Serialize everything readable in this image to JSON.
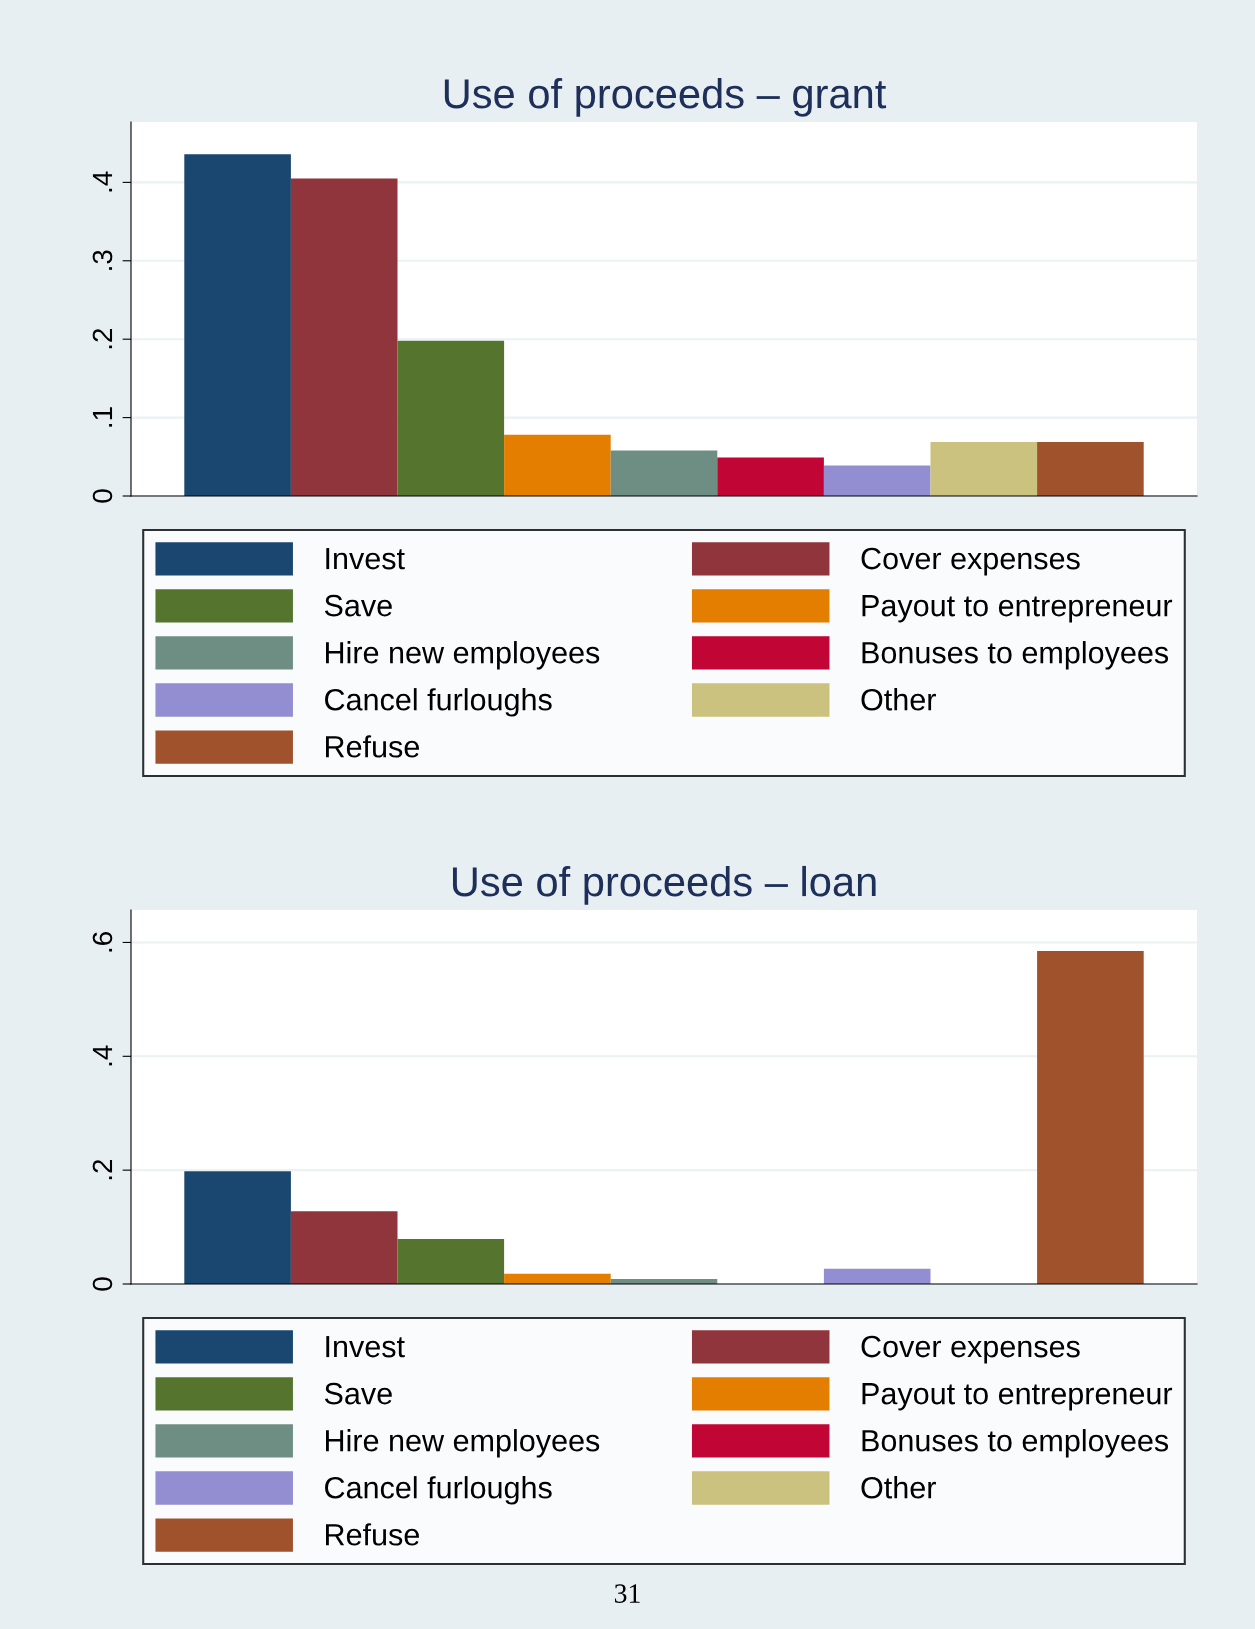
{
  "chart_data": [
    {
      "type": "bar",
      "title": "Use of proceeds – grant",
      "categories": [
        null
      ],
      "ylim": [
        0,
        0.477
      ],
      "yticks": [
        {
          "value": 0,
          "label": "0"
        },
        {
          "value": 0.1,
          "label": ".1"
        },
        {
          "value": 0.2,
          "label": ".2"
        },
        {
          "value": 0.3,
          "label": ".3"
        },
        {
          "value": 0.4,
          "label": ".4"
        }
      ],
      "grid": "y",
      "legend": "bottom",
      "series": [
        {
          "name": "Invest",
          "color": "#1a476f",
          "values": [
            0.436
          ]
        },
        {
          "name": "Cover expenses",
          "color": "#90353b",
          "values": [
            0.405
          ]
        },
        {
          "name": "Save",
          "color": "#55752f",
          "values": [
            0.198
          ]
        },
        {
          "name": "Payout to entrepreneur",
          "color": "#e37e00",
          "values": [
            0.078
          ]
        },
        {
          "name": "Hire new employees",
          "color": "#6e8e84",
          "values": [
            0.058
          ]
        },
        {
          "name": "Bonuses to employees",
          "color": "#c10534",
          "values": [
            0.049
          ]
        },
        {
          "name": "Cancel furloughs",
          "color": "#938dd2",
          "values": [
            0.039
          ]
        },
        {
          "name": "Other",
          "color": "#cac27e",
          "values": [
            0.069
          ]
        },
        {
          "name": "Refuse",
          "color": "#a0522d",
          "values": [
            0.069
          ]
        }
      ]
    },
    {
      "type": "bar",
      "title": "Use of proceeds – loan",
      "categories": [
        null
      ],
      "ylim": [
        0,
        0.657
      ],
      "yticks": [
        {
          "value": 0,
          "label": "0"
        },
        {
          "value": 0.2,
          "label": ".2"
        },
        {
          "value": 0.4,
          "label": ".4"
        },
        {
          "value": 0.6,
          "label": ".6"
        }
      ],
      "grid": "y",
      "legend": "bottom",
      "annotations": [
        "31"
      ],
      "series": [
        {
          "name": "Invest",
          "color": "#1a476f",
          "values": [
            0.198
          ]
        },
        {
          "name": "Cover expenses",
          "color": "#90353b",
          "values": [
            0.128
          ]
        },
        {
          "name": "Save",
          "color": "#55752f",
          "values": [
            0.079
          ]
        },
        {
          "name": "Payout to entrepreneur",
          "color": "#e37e00",
          "values": [
            0.018
          ]
        },
        {
          "name": "Hire new employees",
          "color": "#6e8e84",
          "values": [
            0.009
          ]
        },
        {
          "name": "Bonuses to employees",
          "color": "#c10534",
          "values": [
            0
          ]
        },
        {
          "name": "Cancel furloughs",
          "color": "#938dd2",
          "values": [
            0.027
          ]
        },
        {
          "name": "Other",
          "color": "#cac27e",
          "values": [
            0
          ]
        },
        {
          "name": "Refuse",
          "color": "#a0522d",
          "values": [
            0.585
          ]
        }
      ]
    }
  ]
}
